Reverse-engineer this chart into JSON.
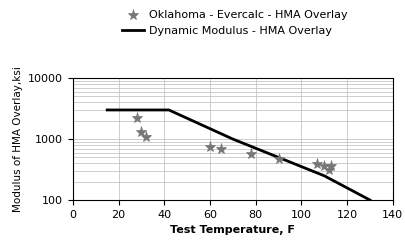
{
  "scatter_x": [
    28,
    30,
    32,
    60,
    65,
    78,
    90,
    107,
    110,
    112,
    113
  ],
  "scatter_y": [
    2200,
    1300,
    1100,
    750,
    700,
    570,
    480,
    390,
    360,
    310,
    360
  ],
  "line_x": [
    15,
    42,
    70,
    90,
    110,
    130
  ],
  "line_y": [
    3000,
    3000,
    1000,
    500,
    250,
    100
  ],
  "xlim": [
    0,
    140
  ],
  "ylim": [
    100,
    10000
  ],
  "xticks": [
    0,
    20,
    40,
    60,
    80,
    100,
    120,
    140
  ],
  "yticks": [
    100,
    1000,
    10000
  ],
  "xlabel": "Test Temperature, F",
  "ylabel": "Modulus of HMA Overlay,ksi",
  "legend_scatter": "Oklahoma - Evercalc - HMA Overlay",
  "legend_line": "Dynamic Modulus - HMA Overlay",
  "scatter_color": "#777777",
  "line_color": "#000000",
  "background_color": "#ffffff",
  "grid_color": "#bbbbbb"
}
